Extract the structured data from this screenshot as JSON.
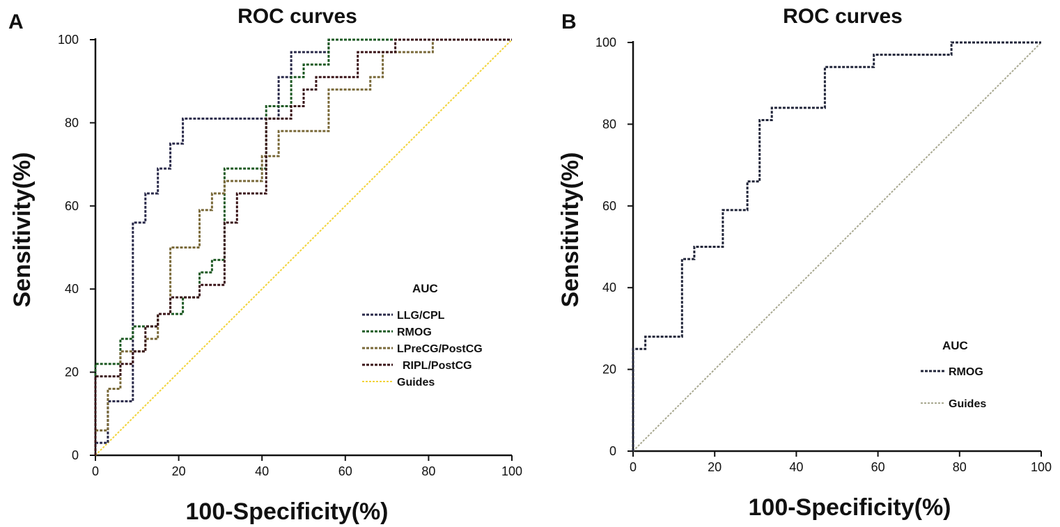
{
  "chart_data": [
    {
      "panel_label": "A",
      "type": "line",
      "title": "ROC curves",
      "xlabel": "100-Specificity(%)",
      "ylabel": "Sensitivity(%)",
      "xlim": [
        0,
        100
      ],
      "ylim": [
        0,
        100
      ],
      "x_ticks": [
        "0",
        "20",
        "40",
        "60",
        "80",
        "100"
      ],
      "y_ticks": [
        "0",
        "20",
        "40",
        "60",
        "80",
        "100"
      ],
      "legend_title": "AUC",
      "legend_position": "bottom-right",
      "series": [
        {
          "name": "LLG/CPL",
          "color": "#2a2a4a",
          "points": [
            [
              0,
              0
            ],
            [
              0,
              3
            ],
            [
              3,
              3
            ],
            [
              3,
              13
            ],
            [
              9,
              13
            ],
            [
              9,
              56
            ],
            [
              12,
              56
            ],
            [
              12,
              63
            ],
            [
              15,
              63
            ],
            [
              15,
              69
            ],
            [
              18,
              69
            ],
            [
              18,
              75
            ],
            [
              21,
              75
            ],
            [
              21,
              81
            ],
            [
              44,
              81
            ],
            [
              44,
              91
            ],
            [
              47,
              91
            ],
            [
              47,
              97
            ],
            [
              56,
              97
            ],
            [
              56,
              100
            ],
            [
              100,
              100
            ]
          ]
        },
        {
          "name": "RMOG",
          "color": "#1e5a24",
          "points": [
            [
              0,
              0
            ],
            [
              0,
              22
            ],
            [
              6,
              22
            ],
            [
              6,
              28
            ],
            [
              9,
              28
            ],
            [
              9,
              31
            ],
            [
              15,
              31
            ],
            [
              15,
              34
            ],
            [
              21,
              34
            ],
            [
              21,
              38
            ],
            [
              25,
              38
            ],
            [
              25,
              44
            ],
            [
              28,
              44
            ],
            [
              28,
              47
            ],
            [
              31,
              47
            ],
            [
              31,
              69
            ],
            [
              41,
              69
            ],
            [
              41,
              84
            ],
            [
              47,
              84
            ],
            [
              47,
              91
            ],
            [
              50,
              91
            ],
            [
              50,
              94
            ],
            [
              56,
              94
            ],
            [
              56,
              100
            ],
            [
              100,
              100
            ]
          ]
        },
        {
          "name": "LPreCG/PostCG",
          "color": "#7a6a3a",
          "points": [
            [
              0,
              0
            ],
            [
              0,
              6
            ],
            [
              3,
              6
            ],
            [
              3,
              16
            ],
            [
              6,
              16
            ],
            [
              6,
              25
            ],
            [
              12,
              25
            ],
            [
              12,
              28
            ],
            [
              15,
              28
            ],
            [
              15,
              34
            ],
            [
              18,
              34
            ],
            [
              18,
              50
            ],
            [
              25,
              50
            ],
            [
              25,
              59
            ],
            [
              28,
              59
            ],
            [
              28,
              63
            ],
            [
              31,
              63
            ],
            [
              31,
              66
            ],
            [
              40,
              66
            ],
            [
              40,
              72
            ],
            [
              44,
              72
            ],
            [
              44,
              78
            ],
            [
              56,
              78
            ],
            [
              56,
              88
            ],
            [
              66,
              88
            ],
            [
              66,
              91
            ],
            [
              69,
              91
            ],
            [
              69,
              97
            ],
            [
              81,
              97
            ],
            [
              81,
              100
            ],
            [
              100,
              100
            ]
          ]
        },
        {
          "name": "RIPL/PostCG",
          "color": "#3a1418",
          "points": [
            [
              0,
              0
            ],
            [
              0,
              19
            ],
            [
              6,
              19
            ],
            [
              6,
              22
            ],
            [
              9,
              22
            ],
            [
              9,
              25
            ],
            [
              12,
              25
            ],
            [
              12,
              31
            ],
            [
              15,
              31
            ],
            [
              15,
              34
            ],
            [
              18,
              34
            ],
            [
              18,
              38
            ],
            [
              25,
              38
            ],
            [
              25,
              41
            ],
            [
              31,
              41
            ],
            [
              31,
              56
            ],
            [
              34,
              56
            ],
            [
              34,
              63
            ],
            [
              41,
              63
            ],
            [
              41,
              81
            ],
            [
              47,
              81
            ],
            [
              47,
              84
            ],
            [
              50,
              84
            ],
            [
              50,
              88
            ],
            [
              53,
              88
            ],
            [
              53,
              91
            ],
            [
              63,
              91
            ],
            [
              63,
              97
            ],
            [
              72,
              97
            ],
            [
              72,
              100
            ],
            [
              100,
              100
            ]
          ]
        },
        {
          "name": "Guides",
          "color": "#f2d43a",
          "points": [
            [
              0,
              0
            ],
            [
              100,
              100
            ]
          ]
        }
      ]
    },
    {
      "panel_label": "B",
      "type": "line",
      "title": "ROC curves",
      "xlabel": "100-Specificity(%)",
      "ylabel": "Sensitivity(%)",
      "xlim": [
        0,
        100
      ],
      "ylim": [
        0,
        100
      ],
      "x_ticks": [
        "0",
        "20",
        "40",
        "60",
        "80",
        "100"
      ],
      "y_ticks": [
        "0",
        "20",
        "40",
        "60",
        "80",
        "100"
      ],
      "legend_title": "AUC",
      "legend_position": "bottom-right",
      "series": [
        {
          "name": "RMOG",
          "color": "#22263a",
          "points": [
            [
              0,
              0
            ],
            [
              0,
              25
            ],
            [
              3,
              25
            ],
            [
              3,
              28
            ],
            [
              12,
              28
            ],
            [
              12,
              47
            ],
            [
              15,
              47
            ],
            [
              15,
              50
            ],
            [
              22,
              50
            ],
            [
              22,
              59
            ],
            [
              28,
              59
            ],
            [
              28,
              66
            ],
            [
              31,
              66
            ],
            [
              31,
              81
            ],
            [
              34,
              81
            ],
            [
              34,
              84
            ],
            [
              47,
              84
            ],
            [
              47,
              94
            ],
            [
              59,
              94
            ],
            [
              59,
              97
            ],
            [
              78,
              97
            ],
            [
              78,
              100
            ],
            [
              100,
              100
            ]
          ]
        },
        {
          "name": "Guides",
          "color": "#a8a890",
          "points": [
            [
              0,
              0
            ],
            [
              100,
              100
            ]
          ]
        }
      ]
    }
  ]
}
